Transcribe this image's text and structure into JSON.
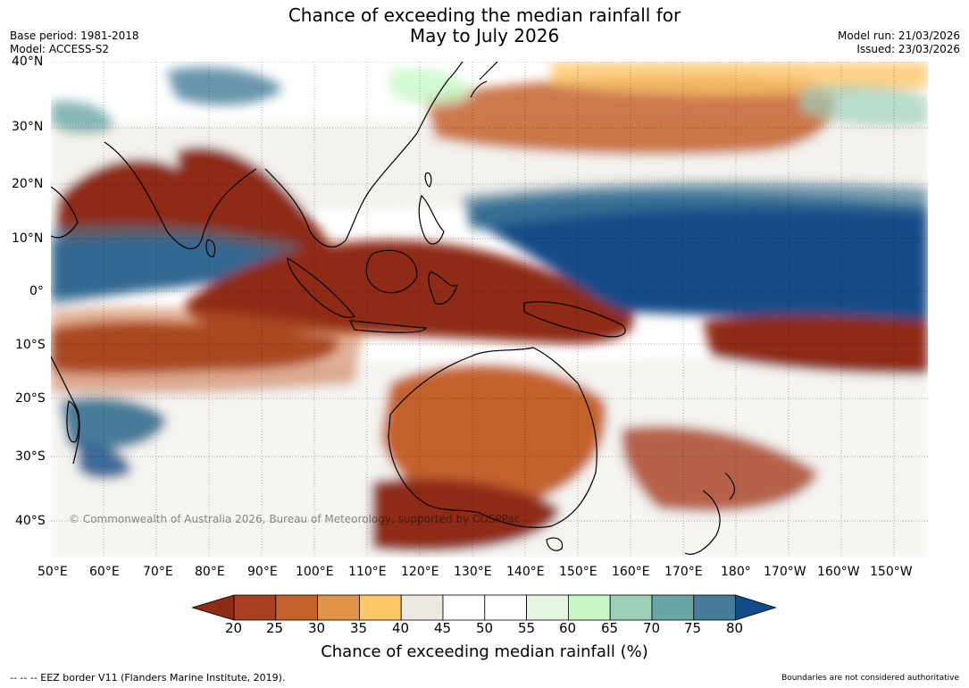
{
  "title": {
    "line1": "Chance of exceeding the median rainfall for",
    "line2": "May to July 2026"
  },
  "meta": {
    "base_period": "Base period: 1981-2018",
    "model": "Model: ACCESS-S2",
    "model_run": "Model run: 21/03/2026",
    "issued": "Issued: 23/03/2026"
  },
  "map": {
    "projection": "equirectangular",
    "region": "Indian Ocean – Maritime Continent – western Pacific",
    "lat_labels": [
      "40°N",
      "30°N",
      "20°N",
      "10°N",
      "0°",
      "10°S",
      "20°S",
      "30°S",
      "40°S"
    ],
    "lon_labels": [
      "50°E",
      "60°E",
      "70°E",
      "80°E",
      "90°E",
      "100°E",
      "110°E",
      "120°E",
      "130°E",
      "140°E",
      "150°E",
      "160°E",
      "170°E",
      "180°",
      "170°W",
      "160°W",
      "150°W"
    ],
    "copyright": "© Commonwealth of Australia 2026, Bureau of Meteorology, supported by COSPPac",
    "ocean_color": "#ffffff"
  },
  "colorbar": {
    "tick_labels": [
      "20",
      "25",
      "30",
      "35",
      "40",
      "45",
      "50",
      "55",
      "60",
      "65",
      "70",
      "75",
      "80"
    ],
    "colors": [
      "#8e2b17",
      "#a8401f",
      "#c4622d",
      "#e0934a",
      "#fcc669",
      "#ece9e3",
      "#ffffff",
      "#ffffff",
      "#e7f5e5",
      "#c7f7c6",
      "#9dcfb9",
      "#6aa5a6",
      "#467c98",
      "#124b87"
    ],
    "label": "Chance of exceeding median rainfall (%)"
  },
  "footer": {
    "left": "--  --  -- EEZ border V11 (Flanders Marine Institute, 2019).",
    "right": "Boundaries are not considered authoritative"
  }
}
